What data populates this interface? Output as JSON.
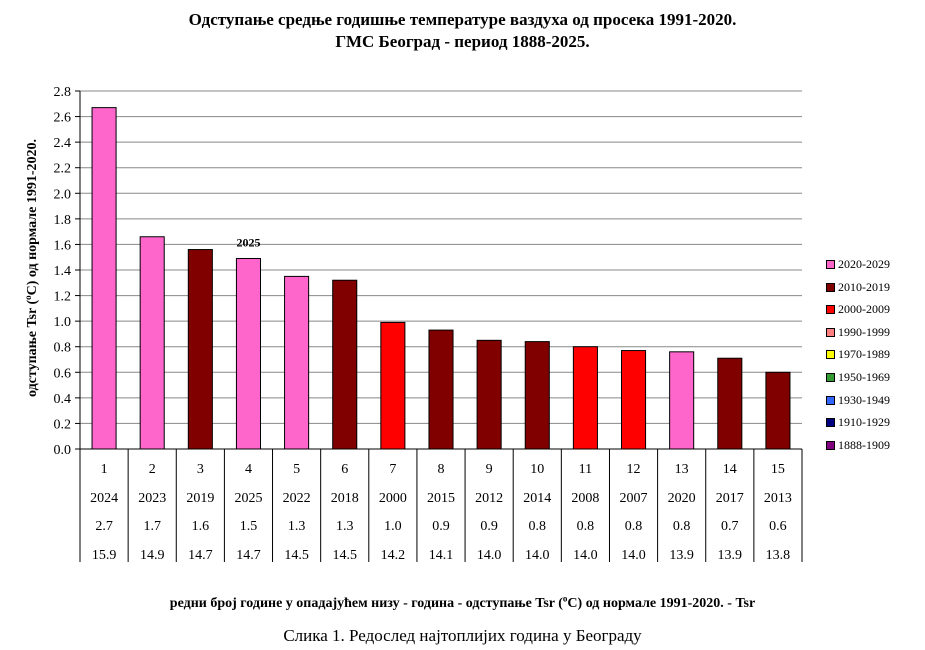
{
  "chart_data": {
    "type": "bar",
    "title": "Одступање средње годишње температуре ваздуха од просека 1991-2020.",
    "subtitle": "ГМС Београд - период 1888-2025.",
    "ylabel_pre": "одступање Tsr (",
    "ylabel_unit": "o",
    "ylabel_post": "C) од нормале 1991-2020.",
    "xlabel_pre": "редни број године у опадајућем низу  - година - одступање Tsr (",
    "xlabel_unit": "o",
    "xlabel_post": "C) од нормале 1991-2020. - Tsr",
    "ylim": [
      0,
      2.8
    ],
    "yticks": [
      "0.0",
      "0.2",
      "0.4",
      "0.6",
      "0.8",
      "1.0",
      "1.2",
      "1.4",
      "1.6",
      "1.8",
      "2.0",
      "2.2",
      "2.4",
      "2.6",
      "2.8"
    ],
    "grid": true,
    "ranks": [
      "1",
      "2",
      "3",
      "4",
      "5",
      "6",
      "7",
      "8",
      "9",
      "10",
      "11",
      "12",
      "13",
      "14",
      "15"
    ],
    "years": [
      "2024",
      "2023",
      "2019",
      "2025",
      "2022",
      "2018",
      "2000",
      "2015",
      "2012",
      "2014",
      "2008",
      "2007",
      "2020",
      "2017",
      "2013"
    ],
    "values": [
      2.67,
      1.66,
      1.56,
      1.49,
      1.35,
      1.32,
      0.99,
      0.93,
      0.85,
      0.84,
      0.8,
      0.77,
      0.76,
      0.71,
      0.6
    ],
    "value_labels": [
      "2.7",
      "1.7",
      "1.6",
      "1.5",
      "1.3",
      "1.3",
      "1.0",
      "0.9",
      "0.9",
      "0.8",
      "0.8",
      "0.8",
      "0.8",
      "0.7",
      "0.6"
    ],
    "tsr": [
      "15.9",
      "14.9",
      "14.7",
      "14.7",
      "14.5",
      "14.5",
      "14.2",
      "14.1",
      "14.0",
      "14.0",
      "14.0",
      "14.0",
      "13.9",
      "13.9",
      "13.8"
    ],
    "bar_groups": [
      "2020-2029",
      "2020-2029",
      "2010-2019",
      "2020-2029",
      "2020-2029",
      "2010-2019",
      "2000-2009",
      "2010-2019",
      "2010-2019",
      "2010-2019",
      "2000-2009",
      "2000-2009",
      "2020-2029",
      "2010-2019",
      "2010-2019"
    ],
    "annotation": {
      "text": "2025",
      "bar_index": 3
    },
    "legend_position": "right",
    "legend": [
      {
        "label": "2020-2029",
        "color": "#ff66cc"
      },
      {
        "label": "2010-2019",
        "color": "#800000"
      },
      {
        "label": "2000-2009",
        "color": "#ff0000"
      },
      {
        "label": "1990-1999",
        "color": "#ff8080"
      },
      {
        "label": "1970-1989",
        "color": "#ffff00"
      },
      {
        "label": "1950-1969",
        "color": "#339933"
      },
      {
        "label": "1930-1949",
        "color": "#3366ff"
      },
      {
        "label": "1910-1929",
        "color": "#000080"
      },
      {
        "label": "1888-1909",
        "color": "#800080"
      }
    ]
  },
  "caption": "Слика 1. Редослед најтоплијих година у Београду"
}
